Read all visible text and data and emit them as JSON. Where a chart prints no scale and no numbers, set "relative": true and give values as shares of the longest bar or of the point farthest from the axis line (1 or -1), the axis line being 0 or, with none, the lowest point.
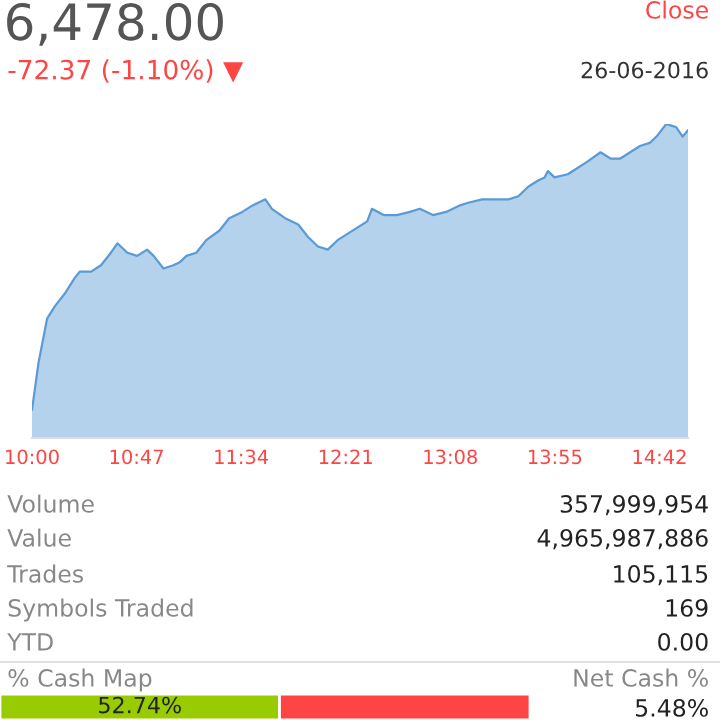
{
  "chart_data": [
    {
      "type": "area",
      "title": "6,478.00",
      "subtitle": "-72.37 (-1.10%) ▼",
      "relative": true,
      "tick_labels": "x",
      "grid": false,
      "annotations": [
        "Close",
        "26-06-2016",
        "Volume",
        "357,999,954",
        "Value",
        "4,965,987,886",
        "Trades",
        "105,115",
        "Symbols Traded",
        "169",
        "YTD",
        "0.00",
        "% Cash Map",
        "Net Cash %"
      ],
      "xlim": [
        10,
        14.914
      ],
      "xticks": [
        {
          "value": 10,
          "label": "10:00"
        },
        {
          "value": 10.7833,
          "label": "10:47"
        },
        {
          "value": 11.5667,
          "label": "11:34"
        },
        {
          "value": 12.35,
          "label": "12:21"
        },
        {
          "value": 13.1333,
          "label": "13:08"
        },
        {
          "value": 13.9167,
          "label": "13:55"
        },
        {
          "value": 14.7,
          "label": "14:42"
        }
      ],
      "x": [
        10.0,
        10.049,
        10.113,
        10.172,
        10.246,
        10.32,
        10.359,
        10.443,
        10.517,
        10.591,
        10.64,
        10.714,
        10.788,
        10.862,
        10.911,
        10.985,
        11.059,
        11.108,
        11.157,
        11.231,
        11.305,
        11.403,
        11.477,
        11.576,
        11.649,
        11.748,
        11.797,
        11.896,
        11.994,
        12.068,
        12.142,
        12.216,
        12.289,
        12.363,
        12.437,
        12.511,
        12.546,
        12.634,
        12.733,
        12.831,
        12.905,
        13.003,
        13.102,
        13.2,
        13.274,
        13.373,
        13.471,
        13.57,
        13.643,
        13.717,
        13.791,
        13.84,
        13.865,
        13.914,
        14.013,
        14.087,
        14.16,
        14.259,
        14.333,
        14.407,
        14.481,
        14.554,
        14.628,
        14.678,
        14.751,
        14.825,
        14.874,
        14.914
      ],
      "series": [
        {
          "color": "#5b9bd5",
          "values": [
            0.09,
            0.24,
            0.38,
            0.42,
            0.46,
            0.51,
            0.53,
            0.53,
            0.55,
            0.59,
            0.62,
            0.59,
            0.58,
            0.6,
            0.58,
            0.54,
            0.55,
            0.56,
            0.58,
            0.59,
            0.63,
            0.66,
            0.7,
            0.72,
            0.74,
            0.76,
            0.73,
            0.7,
            0.68,
            0.64,
            0.61,
            0.6,
            0.63,
            0.65,
            0.67,
            0.69,
            0.73,
            0.71,
            0.71,
            0.72,
            0.73,
            0.71,
            0.72,
            0.74,
            0.75,
            0.76,
            0.76,
            0.76,
            0.77,
            0.8,
            0.82,
            0.83,
            0.85,
            0.83,
            0.84,
            0.86,
            0.88,
            0.91,
            0.89,
            0.89,
            0.91,
            0.93,
            0.94,
            0.96,
            1,
            0.99,
            0.96,
            0.98
          ]
        }
      ]
    },
    {
      "type": "bar",
      "orientation": "horizontal",
      "stacked": true,
      "categories": [
        null
      ],
      "xlim": [
        0,
        100
      ],
      "tick_labels": false,
      "annotations": [
        "5.48%"
      ],
      "series": [
        {
          "color": "#99cc00",
          "values": [
            52.74
          ],
          "value_labels": [
            "52.74%"
          ]
        },
        {
          "color": "#ff4444",
          "values": [
            47.26
          ],
          "value_labels": [
            null
          ]
        }
      ]
    }
  ]
}
